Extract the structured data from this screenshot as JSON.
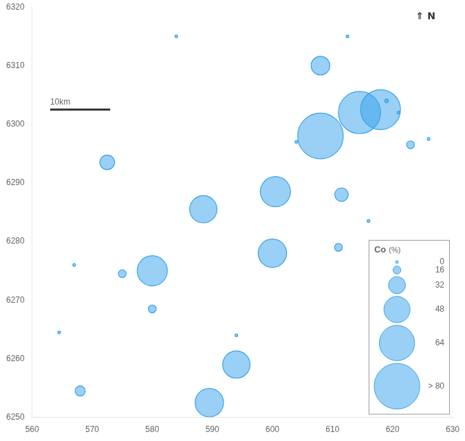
{
  "chart_data": {
    "type": "bubble",
    "x": [
      572.5,
      568,
      564.5,
      567,
      575,
      580,
      580,
      584,
      588.5,
      589.5,
      594,
      594,
      600.5,
      600,
      604,
      608,
      608,
      611.5,
      611,
      612.5,
      614.5,
      616,
      618,
      619,
      621,
      623,
      626
    ],
    "y": [
      6293.5,
      6254.5,
      6264.5,
      6276,
      6274.5,
      6275,
      6268.5,
      6315,
      6285.5,
      6252.5,
      6259,
      6264,
      6288.5,
      6278,
      6297,
      6310,
      6298,
      6288,
      6279,
      6315,
      6302,
      6283.5,
      6302.5,
      6304,
      6302,
      6296.5,
      6297.5
    ],
    "sizes": [
      28,
      20,
      1,
      1,
      9,
      55,
      5,
      1,
      50,
      52,
      50,
      1,
      55,
      52,
      1,
      35,
      82,
      26,
      16,
      1,
      76,
      1,
      72,
      2,
      1,
      14,
      1
    ],
    "xlim": [
      560,
      630
    ],
    "ylim": [
      6250,
      6320
    ],
    "xticks": [
      560,
      570,
      580,
      590,
      600,
      610,
      620,
      630
    ],
    "yticks": [
      6250,
      6260,
      6270,
      6280,
      6290,
      6300,
      6310,
      6320
    ],
    "grid": false,
    "legend": "lower right",
    "legend_title": "Co",
    "legend_unit": "(%)",
    "legend_items": [
      {
        "value": 0,
        "label": "0"
      },
      {
        "value": 16,
        "label": "16"
      },
      {
        "value": 32,
        "label": "32"
      },
      {
        "value": 48,
        "label": "48"
      },
      {
        "value": 64,
        "label": "64"
      },
      {
        "value": 82,
        "label": "> 80"
      }
    ],
    "scale_bar": {
      "x1": 563,
      "x2": 573,
      "y": 6302.5,
      "label": "10km"
    },
    "annotations": [
      {
        "text": "⇑ N",
        "x": 625.5,
        "y": 6317.5
      }
    ]
  }
}
